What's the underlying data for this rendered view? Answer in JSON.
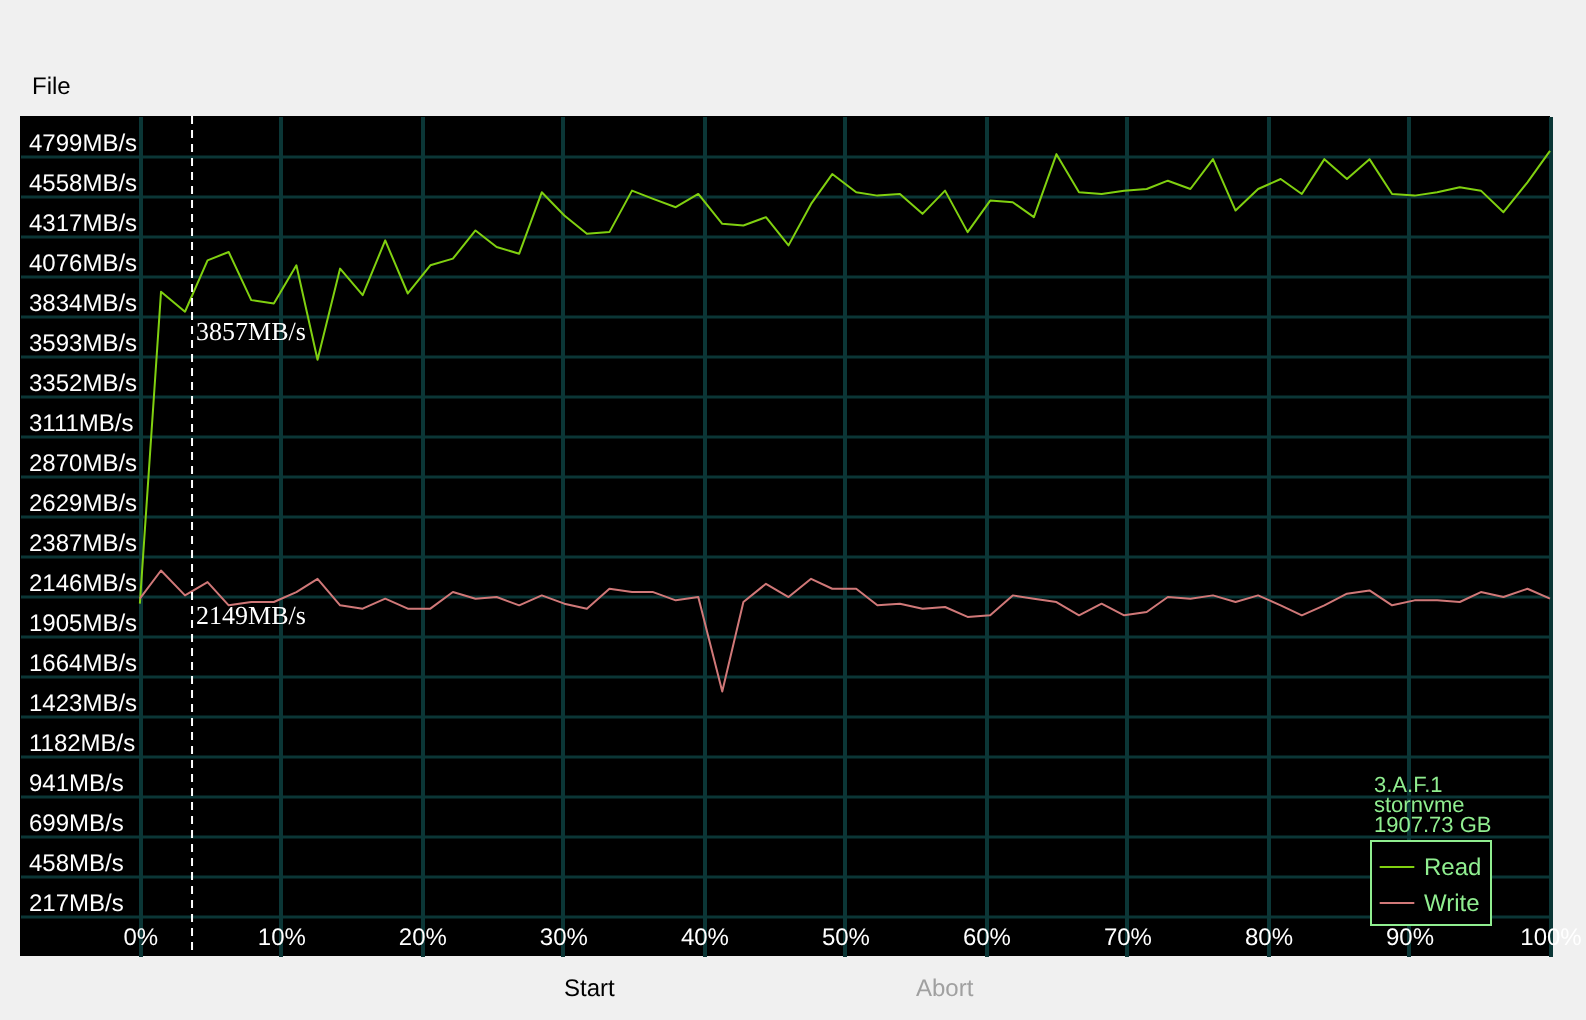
{
  "chart_data": {
    "type": "line",
    "x": [
      0,
      1.5,
      3.2,
      4.8,
      6.3,
      7.9,
      9.5,
      11.1,
      12.6,
      14.2,
      15.8,
      17.4,
      19.0,
      20.6,
      22.2,
      23.8,
      25.3,
      26.9,
      28.5,
      30.1,
      31.7,
      33.3,
      34.9,
      36.4,
      38.0,
      39.6,
      41.3,
      42.8,
      44.4,
      46.0,
      47.6,
      49.1,
      50.8,
      52.3,
      53.9,
      55.5,
      57.1,
      58.7,
      60.3,
      61.9,
      63.4,
      65.0,
      66.6,
      68.2,
      69.8,
      71.4,
      72.9,
      74.5,
      76.1,
      77.7,
      79.3,
      80.9,
      82.4,
      84.0,
      85.6,
      87.2,
      88.8,
      90.4,
      92.0,
      93.6,
      95.1,
      96.7,
      98.4,
      100
    ],
    "series": [
      {
        "name": "Read",
        "color": "#80d010",
        "values": [
          2100,
          3980,
          3860,
          4170,
          4220,
          3930,
          3910,
          4140,
          3570,
          4120,
          3960,
          4290,
          3970,
          4140,
          4180,
          4350,
          4250,
          4210,
          4580,
          4440,
          4330,
          4340,
          4590,
          4540,
          4490,
          4570,
          4390,
          4380,
          4430,
          4260,
          4510,
          4690,
          4580,
          4560,
          4570,
          4450,
          4590,
          4340,
          4530,
          4520,
          4430,
          4810,
          4580,
          4570,
          4590,
          4600,
          4650,
          4600,
          4780,
          4470,
          4600,
          4660,
          4570,
          4780,
          4660,
          4780,
          4570,
          4560,
          4580,
          4610,
          4590,
          4460,
          4640,
          4830
        ]
      },
      {
        "name": "Write",
        "color": "#d07878",
        "values": [
          2130,
          2300,
          2150,
          2230,
          2090,
          2110,
          2110,
          2170,
          2250,
          2090,
          2070,
          2130,
          2070,
          2070,
          2170,
          2130,
          2140,
          2090,
          2150,
          2100,
          2070,
          2190,
          2170,
          2170,
          2120,
          2140,
          1570,
          2110,
          2220,
          2140,
          2250,
          2190,
          2190,
          2090,
          2100,
          2070,
          2080,
          2020,
          2030,
          2150,
          2130,
          2110,
          2030,
          2100,
          2030,
          2050,
          2140,
          2130,
          2150,
          2110,
          2150,
          2090,
          2030,
          2090,
          2160,
          2180,
          2090,
          2120,
          2120,
          2110,
          2170,
          2140,
          2190,
          2130
        ]
      }
    ],
    "xlim": [
      -8.5,
      100
    ],
    "xticks": [
      {
        "value": 0,
        "label": "0%"
      },
      {
        "value": 10,
        "label": "10%"
      },
      {
        "value": 20,
        "label": "20%"
      },
      {
        "value": 30,
        "label": "30%"
      },
      {
        "value": 40,
        "label": "40%"
      },
      {
        "value": 50,
        "label": "50%"
      },
      {
        "value": 60,
        "label": "60%"
      },
      {
        "value": 70,
        "label": "70%"
      },
      {
        "value": 80,
        "label": "80%"
      },
      {
        "value": 90,
        "label": "90%"
      },
      {
        "value": 100,
        "label": "100%"
      }
    ],
    "ylim": [
      -24,
      5040
    ],
    "yticks": [
      {
        "value": 217,
        "label": "217MB/s"
      },
      {
        "value": 458,
        "label": "458MB/s"
      },
      {
        "value": 699,
        "label": "699MB/s"
      },
      {
        "value": 941,
        "label": "941MB/s"
      },
      {
        "value": 1182,
        "label": "1182MB/s"
      },
      {
        "value": 1423,
        "label": "1423MB/s"
      },
      {
        "value": 1664,
        "label": "1664MB/s"
      },
      {
        "value": 1905,
        "label": "1905MB/s"
      },
      {
        "value": 2146,
        "label": "2146MB/s"
      },
      {
        "value": 2387,
        "label": "2387MB/s"
      },
      {
        "value": 2629,
        "label": "2629MB/s"
      },
      {
        "value": 2870,
        "label": "2870MB/s"
      },
      {
        "value": 3111,
        "label": "3111MB/s"
      },
      {
        "value": 3352,
        "label": "3352MB/s"
      },
      {
        "value": 3593,
        "label": "3593MB/s"
      },
      {
        "value": 3834,
        "label": "3834MB/s"
      },
      {
        "value": 4076,
        "label": "4076MB/s"
      },
      {
        "value": 4317,
        "label": "4317MB/s"
      },
      {
        "value": 4558,
        "label": "4558MB/s"
      },
      {
        "value": 4799,
        "label": "4799MB/s"
      }
    ],
    "ref_lines": [
      {
        "axis": "x",
        "value": 3.7,
        "color": "#ffffff",
        "line_style": "dashed"
      }
    ],
    "annotations": [
      "3.A.F.1",
      "stornvme",
      "1907.73 GB",
      "File",
      "Start",
      "Abort",
      {
        "text": "3857MB/s",
        "x": 3.7,
        "y": 3857
      },
      {
        "text": "2149MB/s",
        "x": 3.7,
        "y": 2149
      }
    ],
    "grid": true,
    "legend": "bottom right",
    "marker": "none",
    "line_style": "solid"
  }
}
